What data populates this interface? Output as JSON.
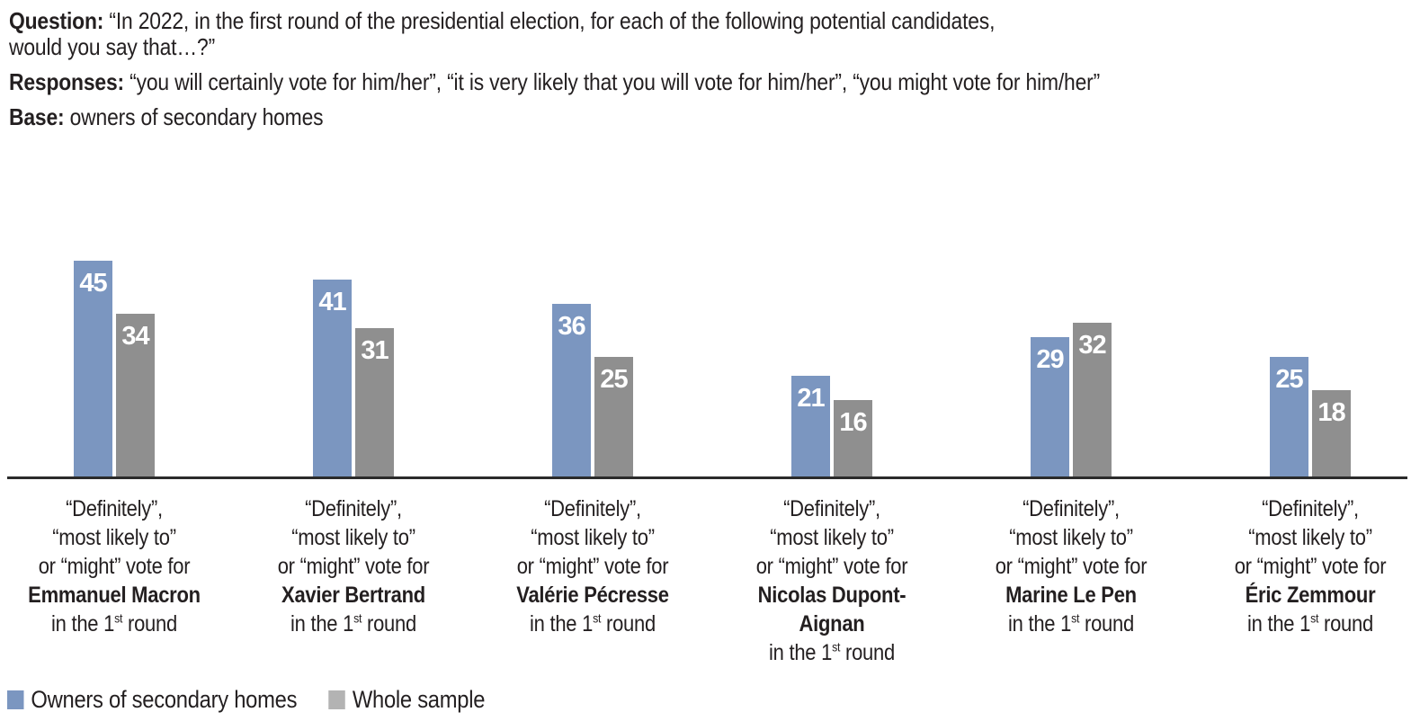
{
  "header": {
    "question_label": "Question:",
    "question_line1": "“In 2022, in the first round of the presidential election, for each of the following potential candidates,",
    "question_line2": "would you say that…?”",
    "responses_label": "Responses:",
    "responses_text": "“you will certainly vote for him/her”, “it is very likely that you will vote for him/her”, “you might vote for him/her”",
    "base_label": "Base:",
    "base_text": "owners of secondary homes"
  },
  "chart_data": {
    "type": "bar",
    "title": "",
    "xlabel": "",
    "ylabel": "",
    "ylim": [
      0,
      50
    ],
    "grid": false,
    "y_axis_visible": false,
    "x_axis_line": true,
    "data_labels": "inside-top-white",
    "categories": [
      {
        "qualifier_lines": [
          "“Definitely”,",
          "“most likely to”",
          "or “might” vote for"
        ],
        "candidate": "Emmanuel Macron",
        "suffix_parts": [
          "in the 1",
          "st",
          " round"
        ]
      },
      {
        "qualifier_lines": [
          "“Definitely”,",
          "“most likely to”",
          "or “might” vote for"
        ],
        "candidate": "Xavier Bertrand",
        "suffix_parts": [
          "in the 1",
          "st",
          " round"
        ]
      },
      {
        "qualifier_lines": [
          "“Definitely”,",
          "“most likely to”",
          "or “might” vote for"
        ],
        "candidate": "Valérie Pécresse",
        "suffix_parts": [
          "in the 1",
          "st",
          " round"
        ]
      },
      {
        "qualifier_lines": [
          "“Definitely”,",
          "“most likely to”",
          "or “might” vote for"
        ],
        "candidate": "Nicolas Dupont-Aignan",
        "suffix_parts": [
          "in the 1",
          "st",
          " round"
        ]
      },
      {
        "qualifier_lines": [
          "“Definitely”,",
          "“most likely to”",
          "or “might” vote for"
        ],
        "candidate": "Marine Le Pen",
        "suffix_parts": [
          "in the 1",
          "st",
          " round"
        ]
      },
      {
        "qualifier_lines": [
          "“Definitely”,",
          "“most likely to”",
          "or “might” vote for"
        ],
        "candidate": "Éric Zemmour",
        "suffix_parts": [
          "in the 1",
          "st",
          " round"
        ]
      }
    ],
    "series": [
      {
        "name": "Owners of secondary homes",
        "color": "#7b96c0",
        "values": [
          45,
          41,
          36,
          21,
          29,
          25
        ]
      },
      {
        "name": "Whole sample",
        "color": "#8f8f8f",
        "values": [
          34,
          31,
          25,
          16,
          32,
          18
        ]
      }
    ],
    "legend": {
      "position": "bottom-left",
      "items": [
        {
          "label": "Owners of secondary homes",
          "swatch_color": "#7b96c0"
        },
        {
          "label": "Whole sample",
          "swatch_color": "#b3b3b3"
        }
      ]
    }
  }
}
